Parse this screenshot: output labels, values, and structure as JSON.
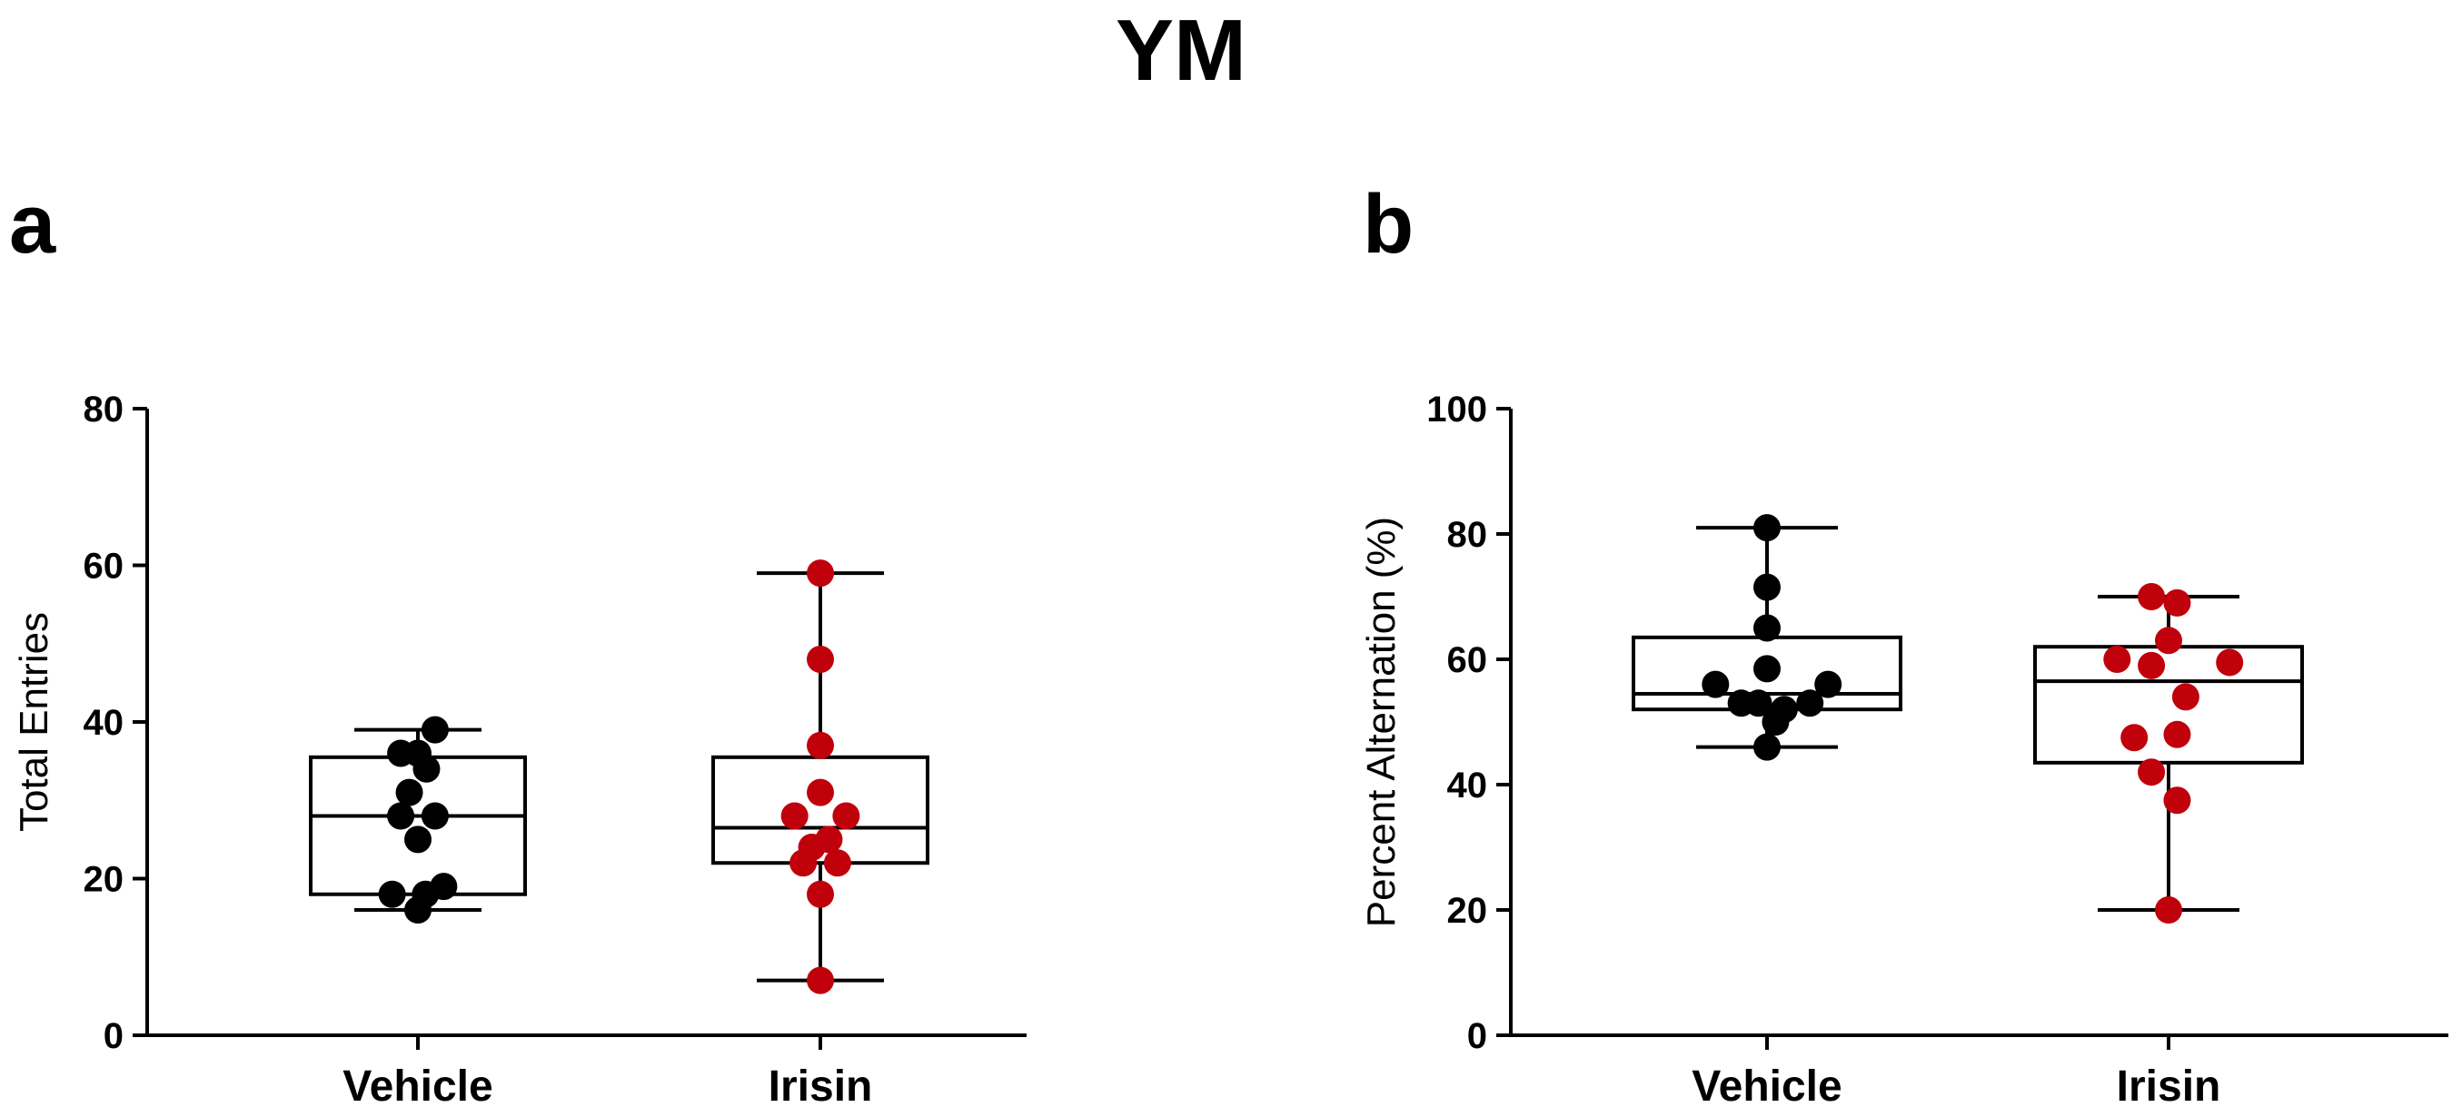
{
  "figure_title": "YM",
  "colors": {
    "vehicle": "#000000",
    "irisin": "#c0000b",
    "axis": "#000000",
    "box_fill": "#ffffff"
  },
  "chart_data": [
    {
      "panel": "a",
      "type": "box",
      "title": "",
      "xlabel": "",
      "ylabel": "Total Entries",
      "ylim": [
        0,
        80
      ],
      "yticks": [
        0,
        20,
        40,
        60,
        80
      ],
      "categories": [
        "Vehicle",
        "Irisin"
      ],
      "series": [
        {
          "name": "Vehicle",
          "color": "#000000",
          "box": {
            "min": 16,
            "q1": 18,
            "median": 28,
            "q3": 35.5,
            "max": 39
          },
          "points": [
            {
              "x_offset": 0.0,
              "y": 16
            },
            {
              "x_offset": -0.27,
              "y": 18
            },
            {
              "x_offset": 0.08,
              "y": 18
            },
            {
              "x_offset": 0.27,
              "y": 19
            },
            {
              "x_offset": 0.0,
              "y": 25
            },
            {
              "x_offset": -0.18,
              "y": 28
            },
            {
              "x_offset": 0.18,
              "y": 28
            },
            {
              "x_offset": -0.09,
              "y": 31
            },
            {
              "x_offset": 0.09,
              "y": 34
            },
            {
              "x_offset": -0.18,
              "y": 36
            },
            {
              "x_offset": 0.0,
              "y": 36
            },
            {
              "x_offset": 0.18,
              "y": 39
            }
          ]
        },
        {
          "name": "Irisin",
          "color": "#c0000b",
          "box": {
            "min": 7,
            "q1": 22,
            "median": 26.5,
            "q3": 35.5,
            "max": 59
          },
          "points": [
            {
              "x_offset": 0.0,
              "y": 7
            },
            {
              "x_offset": 0.0,
              "y": 18
            },
            {
              "x_offset": -0.18,
              "y": 22
            },
            {
              "x_offset": 0.18,
              "y": 22
            },
            {
              "x_offset": -0.09,
              "y": 24
            },
            {
              "x_offset": 0.09,
              "y": 25
            },
            {
              "x_offset": -0.27,
              "y": 28
            },
            {
              "x_offset": 0.27,
              "y": 28
            },
            {
              "x_offset": 0.0,
              "y": 31
            },
            {
              "x_offset": 0.0,
              "y": 37
            },
            {
              "x_offset": 0.0,
              "y": 48
            },
            {
              "x_offset": 0.0,
              "y": 59
            }
          ]
        }
      ]
    },
    {
      "panel": "b",
      "type": "box",
      "title": "",
      "xlabel": "",
      "ylabel": "Percent Alternation (%)",
      "ylim": [
        0,
        100
      ],
      "yticks": [
        0,
        20,
        40,
        60,
        80,
        100
      ],
      "categories": [
        "Vehicle",
        "Irisin"
      ],
      "series": [
        {
          "name": "Vehicle",
          "color": "#000000",
          "box": {
            "min": 46,
            "q1": 52,
            "median": 54.5,
            "q3": 63.5,
            "max": 81
          },
          "points": [
            {
              "x_offset": 0.0,
              "y": 46
            },
            {
              "x_offset": 0.09,
              "y": 50
            },
            {
              "x_offset": 0.18,
              "y": 52
            },
            {
              "x_offset": -0.27,
              "y": 53
            },
            {
              "x_offset": -0.09,
              "y": 53
            },
            {
              "x_offset": 0.45,
              "y": 53
            },
            {
              "x_offset": -0.54,
              "y": 56
            },
            {
              "x_offset": 0.64,
              "y": 56
            },
            {
              "x_offset": 0.0,
              "y": 58.5
            },
            {
              "x_offset": 0.0,
              "y": 65
            },
            {
              "x_offset": 0.0,
              "y": 71.5
            },
            {
              "x_offset": 0.0,
              "y": 81
            }
          ]
        },
        {
          "name": "Irisin",
          "color": "#c0000b",
          "box": {
            "min": 20,
            "q1": 43.5,
            "median": 56.5,
            "q3": 62,
            "max": 70
          },
          "points": [
            {
              "x_offset": 0.0,
              "y": 20
            },
            {
              "x_offset": 0.09,
              "y": 37.5
            },
            {
              "x_offset": -0.18,
              "y": 42
            },
            {
              "x_offset": -0.36,
              "y": 47.5
            },
            {
              "x_offset": 0.09,
              "y": 48
            },
            {
              "x_offset": 0.18,
              "y": 54
            },
            {
              "x_offset": -0.18,
              "y": 59
            },
            {
              "x_offset": -0.54,
              "y": 60
            },
            {
              "x_offset": 0.64,
              "y": 59.5
            },
            {
              "x_offset": 0.0,
              "y": 63
            },
            {
              "x_offset": -0.18,
              "y": 70
            },
            {
              "x_offset": 0.09,
              "y": 69
            }
          ]
        }
      ]
    }
  ]
}
